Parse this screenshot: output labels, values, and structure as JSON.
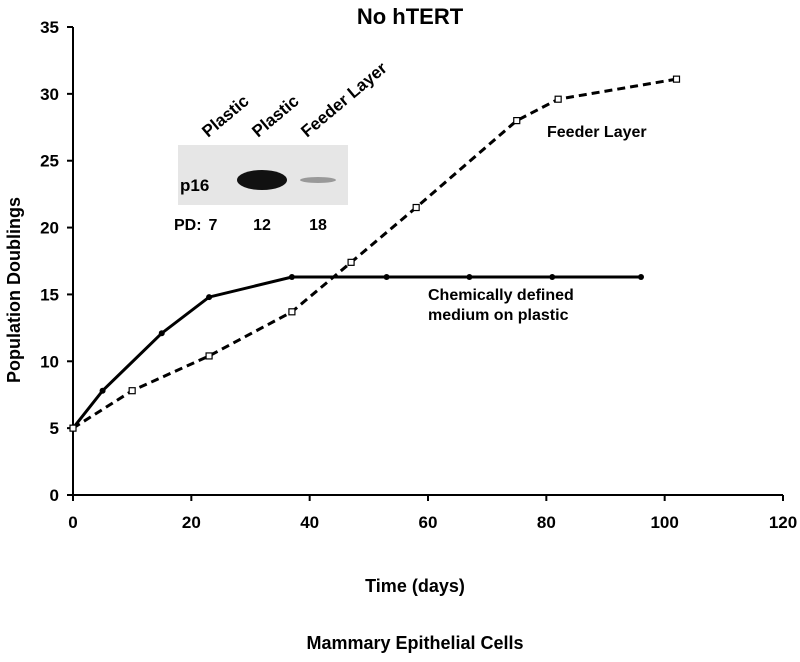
{
  "chart_data": {
    "type": "line",
    "title": "No hTERT",
    "x_label": "Time (days)",
    "y_label": "Population Doublings",
    "caption": "Mammary Epithelial Cells",
    "xlim": [
      0,
      120
    ],
    "xticks": [
      0,
      20,
      40,
      60,
      80,
      100,
      120
    ],
    "ylim": [
      0,
      35
    ],
    "yticks": [
      0,
      5,
      10,
      15,
      20,
      25,
      30,
      35
    ],
    "series": [
      {
        "name": "Chemically defined medium on plastic",
        "color": "#000000",
        "dash": false,
        "marker": "circle",
        "x": [
          0,
          5,
          15,
          23,
          37,
          53,
          67,
          81,
          96
        ],
        "values": [
          5,
          7.8,
          12.1,
          14.8,
          16.3,
          16.3,
          16.3,
          16.3,
          16.3
        ]
      },
      {
        "name": "Feeder Layer",
        "color": "#000000",
        "dash": true,
        "marker": "square",
        "x": [
          0,
          10,
          23,
          37,
          47,
          58,
          75,
          82,
          102
        ],
        "values": [
          5,
          7.8,
          10.4,
          13.7,
          17.4,
          21.5,
          28,
          29.6,
          31.1
        ]
      }
    ],
    "inset": {
      "lanes": [
        "Plastic",
        "Plastic",
        "Feeder Layer"
      ],
      "row_label": "p16",
      "pd_label": "PD:",
      "pd_values": [
        "7",
        "12",
        "18"
      ]
    }
  }
}
